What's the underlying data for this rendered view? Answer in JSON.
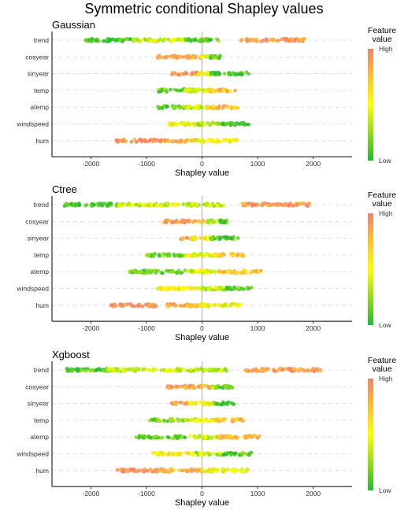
{
  "title": "Symmetric conditional Shapley values",
  "colors": {
    "low": "#22bb33",
    "mid": "#ffff00",
    "high": "#f8806a"
  },
  "chart_data": [
    {
      "type": "scatter",
      "title": "Gaussian",
      "xlabel": "Shapley value",
      "xlim": [
        -2700,
        2700
      ],
      "xticks": [
        -2000,
        -1000,
        0,
        1000,
        2000
      ],
      "categories": [
        "trend",
        "cosyear",
        "sinyear",
        "temp",
        "atemp",
        "windspeed",
        "hum"
      ],
      "legend": {
        "title": "Feature\nvalue",
        "high": "High",
        "low": "Low",
        "placement": "right"
      },
      "series": [
        {
          "feature": "trend",
          "ranges": [
            [
              -2100,
              -1200,
              0.1
            ],
            [
              -1250,
              -300,
              0.4
            ],
            [
              -300,
              300,
              0.15
            ],
            [
              700,
              1850,
              0.9
            ]
          ]
        },
        {
          "feature": "cosyear",
          "ranges": [
            [
              -800,
              -500,
              0.9
            ],
            [
              -500,
              0,
              0.85
            ],
            [
              0,
              300,
              0.5
            ],
            [
              150,
              350,
              0.1
            ]
          ]
        },
        {
          "feature": "sinyear",
          "ranges": [
            [
              -550,
              -50,
              0.9
            ],
            [
              -100,
              200,
              0.5
            ],
            [
              150,
              850,
              0.05
            ]
          ]
        },
        {
          "feature": "temp",
          "ranges": [
            [
              -800,
              -200,
              0.2
            ],
            [
              -300,
              200,
              0.45
            ],
            [
              100,
              600,
              0.75
            ]
          ]
        },
        {
          "feature": "atemp",
          "ranges": [
            [
              -800,
              -200,
              0.15
            ],
            [
              -300,
              200,
              0.4
            ],
            [
              100,
              650,
              0.75
            ]
          ]
        },
        {
          "feature": "windspeed",
          "ranges": [
            [
              -600,
              -100,
              0.55
            ],
            [
              -150,
              400,
              0.35
            ],
            [
              300,
              850,
              0.05
            ]
          ]
        },
        {
          "feature": "hum",
          "ranges": [
            [
              -1550,
              -700,
              0.95
            ],
            [
              -700,
              -100,
              0.8
            ],
            [
              -100,
              650,
              0.5
            ]
          ]
        }
      ]
    },
    {
      "type": "scatter",
      "title": "Ctree",
      "xlabel": "Shapley value",
      "xlim": [
        -2700,
        2700
      ],
      "xticks": [
        -2000,
        -1000,
        0,
        1000,
        2000
      ],
      "categories": [
        "trend",
        "cosyear",
        "sinyear",
        "temp",
        "atemp",
        "windspeed",
        "hum"
      ],
      "legend": {
        "title": "Feature\nvalue",
        "high": "High",
        "low": "Low",
        "placement": "right"
      },
      "series": [
        {
          "feature": "trend",
          "ranges": [
            [
              -2500,
              -1500,
              0.1
            ],
            [
              -1500,
              -300,
              0.4
            ],
            [
              -300,
              400,
              0.35
            ],
            [
              700,
              1950,
              0.9
            ]
          ]
        },
        {
          "feature": "cosyear",
          "ranges": [
            [
              -700,
              -400,
              0.9
            ],
            [
              -400,
              100,
              0.85
            ],
            [
              100,
              400,
              0.3
            ],
            [
              300,
              450,
              0.1
            ]
          ]
        },
        {
          "feature": "sinyear",
          "ranges": [
            [
              -400,
              -150,
              0.9
            ],
            [
              -200,
              200,
              0.55
            ],
            [
              150,
              650,
              0.1
            ]
          ]
        },
        {
          "feature": "temp",
          "ranges": [
            [
              -1000,
              -300,
              0.2
            ],
            [
              -300,
              300,
              0.45
            ],
            [
              200,
              800,
              0.75
            ]
          ]
        },
        {
          "feature": "atemp",
          "ranges": [
            [
              -1300,
              -300,
              0.15
            ],
            [
              -300,
              300,
              0.4
            ],
            [
              300,
              1100,
              0.75
            ]
          ]
        },
        {
          "feature": "windspeed",
          "ranges": [
            [
              -800,
              -100,
              0.55
            ],
            [
              -100,
              500,
              0.35
            ],
            [
              400,
              900,
              0.1
            ]
          ]
        },
        {
          "feature": "hum",
          "ranges": [
            [
              -1650,
              -800,
              0.95
            ],
            [
              -650,
              0,
              0.8
            ],
            [
              -50,
              700,
              0.5
            ]
          ]
        }
      ]
    },
    {
      "type": "scatter",
      "title": "Xgboost",
      "xlabel": "Shapley value",
      "xlim": [
        -2700,
        2700
      ],
      "xticks": [
        -2000,
        -1000,
        0,
        1000,
        2000
      ],
      "categories": [
        "trend",
        "cosyear",
        "sinyear",
        "temp",
        "atemp",
        "windspeed",
        "hum"
      ],
      "legend": {
        "title": "Feature\nvalue",
        "high": "High",
        "low": "Low",
        "placement": "right"
      },
      "series": [
        {
          "feature": "trend",
          "ranges": [
            [
              -2450,
              -1500,
              0.1
            ],
            [
              -1750,
              -300,
              0.4
            ],
            [
              -300,
              500,
              0.35
            ],
            [
              750,
              2150,
              0.9
            ]
          ]
        },
        {
          "feature": "cosyear",
          "ranges": [
            [
              -650,
              -400,
              0.9
            ],
            [
              -400,
              200,
              0.85
            ],
            [
              150,
              500,
              0.3
            ],
            [
              300,
              550,
              0.1
            ]
          ]
        },
        {
          "feature": "sinyear",
          "ranges": [
            [
              -550,
              -250,
              0.9
            ],
            [
              -250,
              250,
              0.55
            ],
            [
              200,
              600,
              0.05
            ]
          ]
        },
        {
          "feature": "temp",
          "ranges": [
            [
              -950,
              -300,
              0.2
            ],
            [
              -300,
              300,
              0.45
            ],
            [
              200,
              750,
              0.75
            ]
          ]
        },
        {
          "feature": "atemp",
          "ranges": [
            [
              -1200,
              -300,
              0.15
            ],
            [
              -300,
              300,
              0.4
            ],
            [
              300,
              1050,
              0.75
            ]
          ]
        },
        {
          "feature": "windspeed",
          "ranges": [
            [
              -900,
              -200,
              0.55
            ],
            [
              -200,
              450,
              0.35
            ],
            [
              350,
              900,
              0.1
            ]
          ]
        },
        {
          "feature": "hum",
          "ranges": [
            [
              -1550,
              -800,
              0.95
            ],
            [
              -800,
              0,
              0.8
            ],
            [
              0,
              850,
              0.5
            ]
          ]
        }
      ]
    }
  ]
}
